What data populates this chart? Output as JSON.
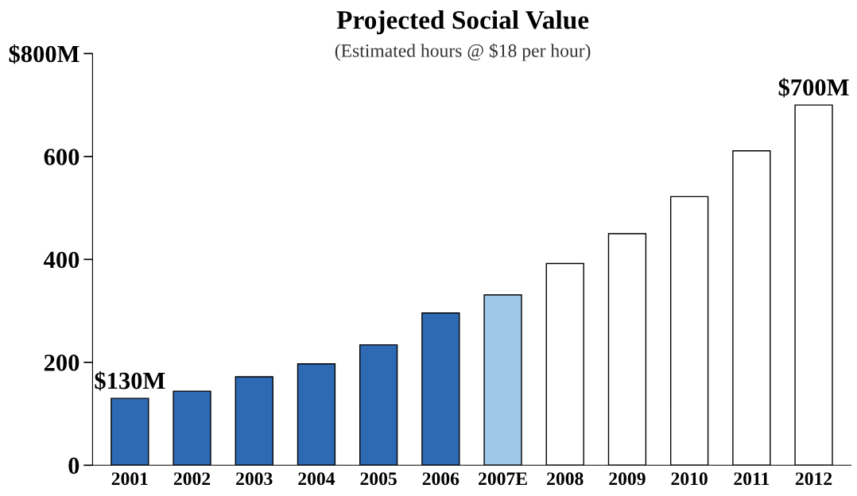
{
  "chart_data": {
    "type": "bar",
    "title": "Projected Social Value",
    "subtitle": "(Estimated hours @ $18 per hour)",
    "categories": [
      "2001",
      "2002",
      "2003",
      "2004",
      "2005",
      "2006",
      "2007E",
      "2008",
      "2009",
      "2010",
      "2011",
      "2012"
    ],
    "values": [
      130,
      144,
      172,
      197,
      234,
      296,
      331,
      392,
      450,
      522,
      611,
      700
    ],
    "colors": [
      "#2e69b3",
      "#2e69b3",
      "#2e69b3",
      "#2e69b3",
      "#2e69b3",
      "#2e69b3",
      "#9fc8e8",
      "#ffffff",
      "#ffffff",
      "#ffffff",
      "#ffffff",
      "#ffffff"
    ],
    "value_labels": [
      "$130M",
      null,
      null,
      null,
      null,
      null,
      null,
      null,
      null,
      null,
      null,
      "$700M"
    ],
    "ylim": [
      0,
      800
    ],
    "yticks": [
      0,
      200,
      400,
      600,
      {
        "value": 800,
        "label": "$800M"
      }
    ],
    "grid": false,
    "legend": false
  }
}
